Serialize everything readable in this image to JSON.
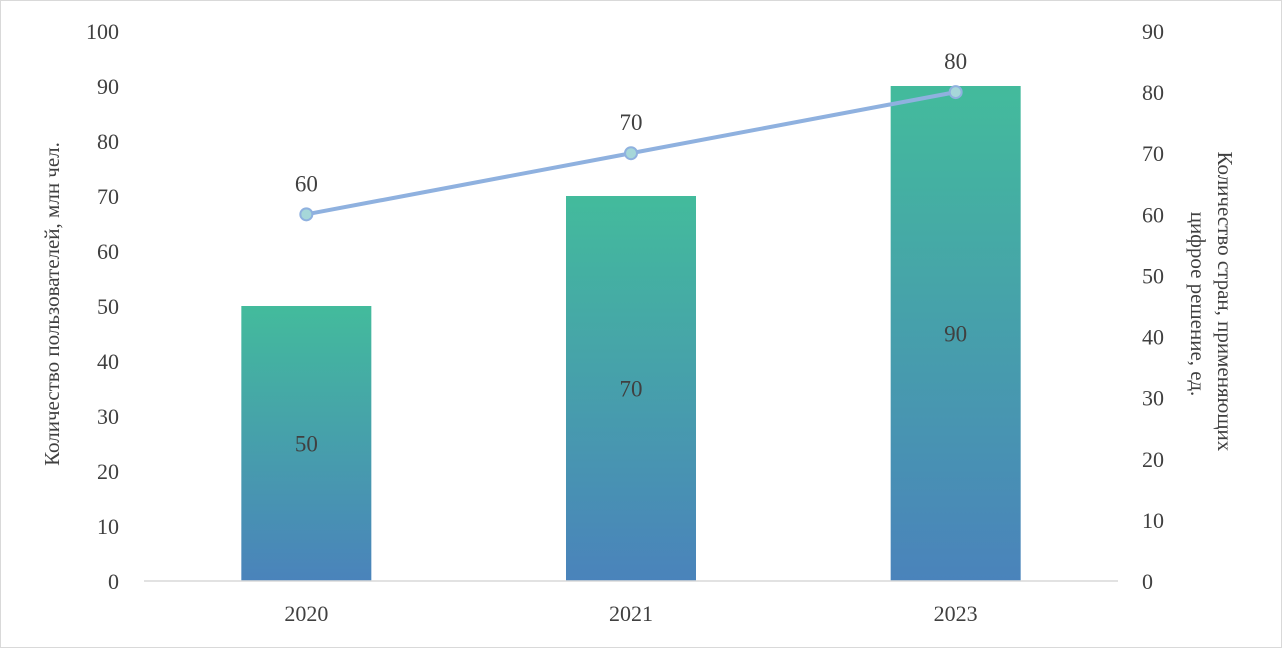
{
  "chart_data": {
    "type": "bar",
    "categories": [
      "2020",
      "2021",
      "2023"
    ],
    "series": [
      {
        "type": "bar",
        "axis": "left",
        "values": [
          50,
          70,
          90
        ],
        "data_labels": [
          "50",
          "70",
          "90"
        ]
      },
      {
        "type": "line",
        "axis": "right",
        "values": [
          60,
          70,
          80
        ],
        "data_labels": [
          "60",
          "70",
          "80"
        ]
      }
    ],
    "ylabel": "Количество пользователей,  млн чел.",
    "y2label_lines": [
      "Количество стран, применяющих",
      "цифрое решение, ед."
    ],
    "ylim": [
      0,
      100
    ],
    "y2lim": [
      0,
      90
    ],
    "yticks": [
      "0",
      "10",
      "20",
      "30",
      "40",
      "50",
      "60",
      "70",
      "80",
      "90",
      "100"
    ],
    "y2ticks": [
      "0",
      "10",
      "20",
      "30",
      "40",
      "50",
      "60",
      "70",
      "80",
      "90"
    ],
    "grid": false,
    "legend": "none",
    "colors": {
      "bar_top": "#43bb9c",
      "bar_bottom": "#4a83bb",
      "line": "#8fb1df",
      "marker_fill": "#a6d7d9",
      "marker_stroke": "#8fb1df",
      "axis": "#d9d9d9",
      "text": "#404040"
    }
  }
}
